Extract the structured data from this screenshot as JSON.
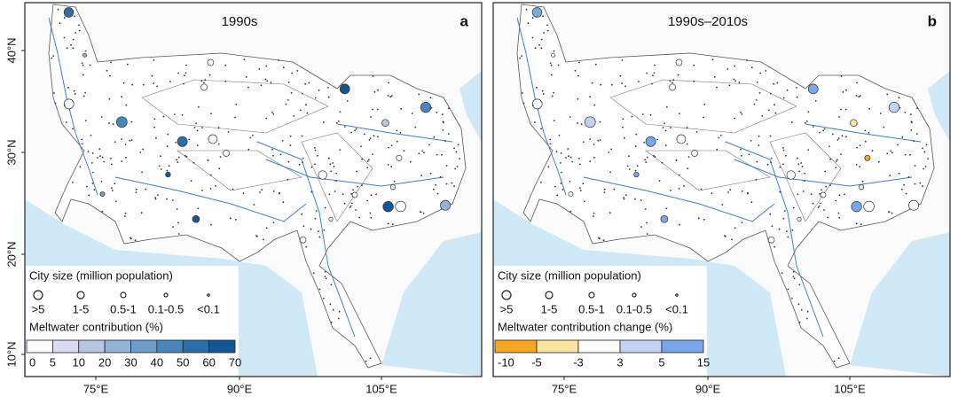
{
  "axes": {
    "lat_labels": [
      "40°N",
      "30°N",
      "20°N",
      "10°N"
    ],
    "lon_labels": [
      "75°E",
      "90°E",
      "105°E"
    ]
  },
  "size_legend": {
    "title": "City size (million population)",
    "labels": [
      ">5",
      "1-5",
      "0.5-1",
      "0.1-0.5",
      "<0.1"
    ]
  },
  "panels": [
    {
      "title": "1990s",
      "letter": "a",
      "color_title": "Meltwater contribution (%)",
      "color_labels": [
        "0",
        "5",
        "10",
        "20",
        "30",
        "40",
        "50",
        "60",
        "70"
      ],
      "colors": [
        "#ffffff",
        "#dcdcf0",
        "#b7c7e3",
        "#93b3d6",
        "#6d9dc9",
        "#4a86bb",
        "#2c6ea8",
        "#135895"
      ]
    },
    {
      "title": "1990s–2010s",
      "letter": "b",
      "color_title": "Meltwater contribution change (%)",
      "color_labels": [
        "-10",
        "-5",
        "-3",
        "3",
        "5",
        "15"
      ],
      "colors": [
        "#f5a623",
        "#fbe3a0",
        "#ffffff",
        "#c3d2f2",
        "#79a7ea"
      ]
    }
  ]
}
